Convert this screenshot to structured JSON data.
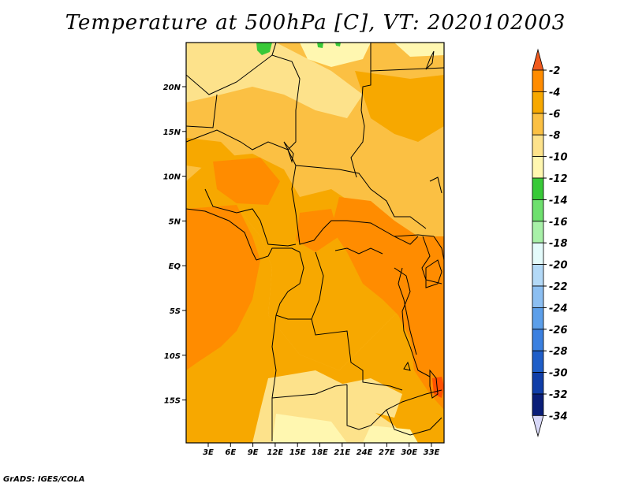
{
  "title": "Temperature at 500hPa [C], VT: 2020102003",
  "credit": "GrADS: IGES/COLA",
  "lat_labels": [
    "20N",
    "15N",
    "10N",
    "5N",
    "EQ",
    "5S",
    "10S",
    "15S"
  ],
  "lon_labels": [
    "3E",
    "6E",
    "9E",
    "12E",
    "15E",
    "18E",
    "21E",
    "24E",
    "27E",
    "30E",
    "33E"
  ],
  "colorbar": {
    "labels": [
      "-2",
      "-4",
      "-6",
      "-8",
      "-10",
      "-12",
      "-14",
      "-16",
      "-18",
      "-20",
      "-22",
      "-24",
      "-26",
      "-28",
      "-30",
      "-32",
      "-34"
    ],
    "colors": [
      "#ff5000",
      "#ff8c00",
      "#f7a800",
      "#fbc043",
      "#fde28b",
      "#fff7b0",
      "#38c938",
      "#6ee06e",
      "#a8f0a8",
      "#e4fbfb",
      "#b3d9f7",
      "#8cbff2",
      "#5c9fea",
      "#3b80e0",
      "#1f5ec8",
      "#103ea8",
      "#0a1e78"
    ],
    "top_arrow_color": "#f05a1e",
    "bottom_arrow_color": "#d8d8f8"
  },
  "map": {
    "field_colors": {
      "base": "#fbc043",
      "warm": "#f7a800",
      "cool": "#fde28b",
      "coolest": "#fff7b0",
      "hot": "#ff8c00",
      "hottest": "#ff5000",
      "green": "#38c938"
    }
  }
}
